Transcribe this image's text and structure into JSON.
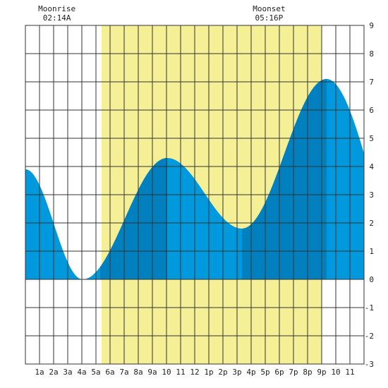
{
  "chart_data": {
    "type": "area",
    "x_unit": "hour of day",
    "xlim": [
      0,
      24
    ],
    "ylim": [
      -3,
      9
    ],
    "y_ticks": [
      9,
      8,
      7,
      6,
      5,
      4,
      3,
      2,
      1,
      0,
      -1,
      -2,
      -3
    ],
    "x_tick_hours": [
      1,
      2,
      3,
      4,
      5,
      6,
      7,
      8,
      9,
      10,
      11,
      12,
      13,
      14,
      15,
      16,
      17,
      18,
      19,
      20,
      21,
      22,
      23
    ],
    "x_tick_labels": [
      "1a",
      "2a",
      "3a",
      "4a",
      "5a",
      "6a",
      "7a",
      "8a",
      "9a",
      "10",
      "11",
      "12",
      "1p",
      "2p",
      "3p",
      "4p",
      "5p",
      "6p",
      "7p",
      "8p",
      "9p",
      "10",
      "11"
    ],
    "grid": true,
    "daylight": {
      "start_hour": 5.4,
      "end_hour": 21.0,
      "color": "#f5ef95"
    },
    "colors": {
      "tide_light": "#0099dd",
      "tide_dark": "#0080bf",
      "grid": "#333333"
    },
    "dark_bands": [
      [
        5.3,
        10.05
      ],
      [
        15.35,
        21.35
      ]
    ],
    "tide_extremes": [
      {
        "hour": 0.0,
        "height": 3.9
      },
      {
        "hour": 4.05,
        "height": 0.0
      },
      {
        "hour": 10.05,
        "height": 4.3
      },
      {
        "hour": 15.35,
        "height": 1.8
      },
      {
        "hour": 21.35,
        "height": 7.1
      },
      {
        "hour": 27.7,
        "height": 0.0
      }
    ],
    "annotations": [
      {
        "title": "Moonrise",
        "time": "02:14A",
        "hour": 2.23
      },
      {
        "title": "Moonset",
        "time": "05:16P",
        "hour": 17.27
      }
    ]
  }
}
